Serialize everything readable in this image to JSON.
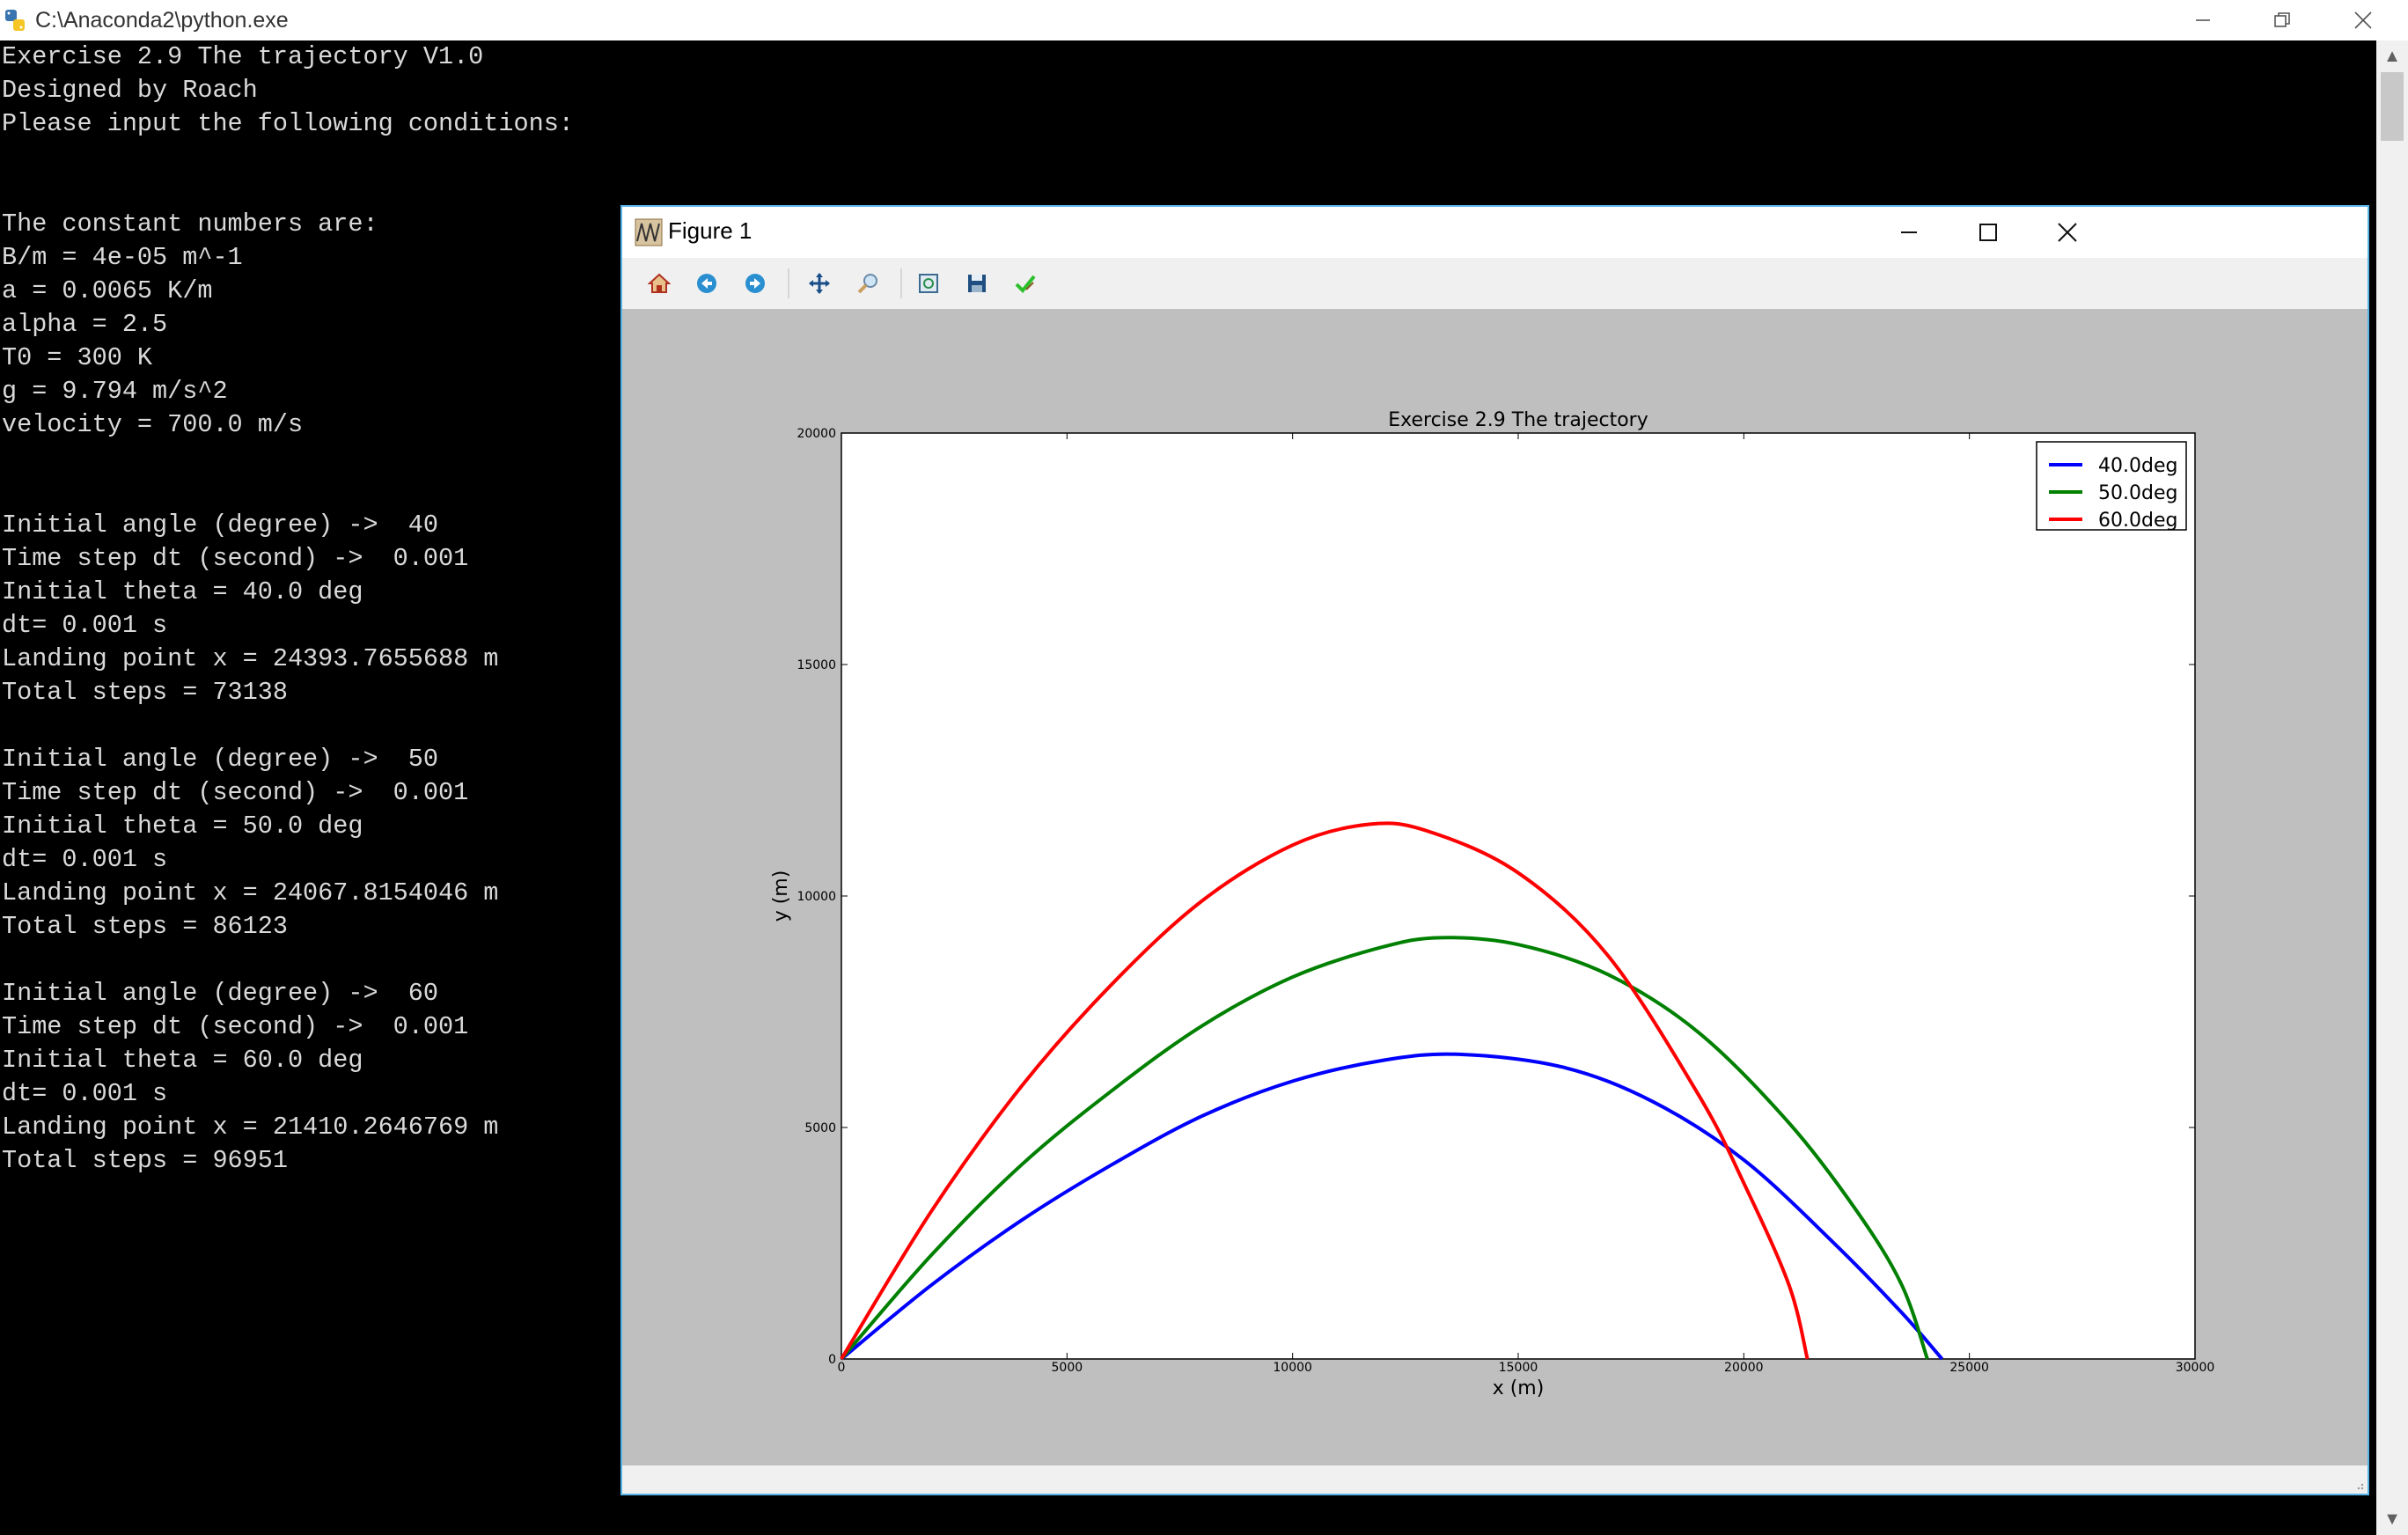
{
  "console_window": {
    "title": "C:\\Anaconda2\\python.exe",
    "lines": [
      "Exercise 2.9 The trajectory V1.0",
      "Designed by Roach",
      "Please input the following conditions:",
      "",
      "",
      "The constant numbers are:",
      "B/m = 4e-05 m^-1",
      "a = 0.0065 K/m",
      "alpha = 2.5",
      "T0 = 300 K",
      "g = 9.794 m/s^2",
      "velocity = 700.0 m/s",
      "",
      "",
      "Initial angle (degree) ->  40",
      "Time step dt (second) ->  0.001",
      "Initial theta = 40.0 deg",
      "dt= 0.001 s",
      "Landing point x = 24393.7655688 m",
      "Total steps = 73138",
      "",
      "Initial angle (degree) ->  50",
      "Time step dt (second) ->  0.001",
      "Initial theta = 50.0 deg",
      "dt= 0.001 s",
      "Landing point x = 24067.8154046 m",
      "Total steps = 86123",
      "",
      "Initial angle (degree) ->  60",
      "Time step dt (second) ->  0.001",
      "Initial theta = 60.0 deg",
      "dt= 0.001 s",
      "Landing point x = 21410.2646769 m",
      "Total steps = 96951"
    ]
  },
  "figure_window": {
    "title": "Figure 1",
    "toolbar": [
      "home-icon",
      "back-arrow-icon",
      "forward-arrow-icon",
      "pan-icon",
      "zoom-icon",
      "subplots-icon",
      "save-icon",
      "edit-check-icon"
    ]
  },
  "chart_data": {
    "type": "line",
    "title": "Exercise 2.9 The trajectory",
    "xlabel": "x (m)",
    "ylabel": "y (m)",
    "xlim": [
      0,
      30000
    ],
    "ylim": [
      0,
      20000
    ],
    "xticks": [
      0,
      5000,
      10000,
      15000,
      20000,
      25000,
      30000
    ],
    "yticks": [
      0,
      5000,
      10000,
      15000,
      20000
    ],
    "grid": false,
    "legend_position": "top-right",
    "series": [
      {
        "name": "40.0deg",
        "color": "#0000ff",
        "x": [
          0,
          2000,
          4000,
          6000,
          8000,
          10000,
          12000,
          13700,
          16000,
          18000,
          20000,
          22000,
          23500,
          24394
        ],
        "y": [
          0,
          1600,
          3000,
          4200,
          5250,
          6000,
          6450,
          6580,
          6300,
          5550,
          4300,
          2500,
          1000,
          0
        ]
      },
      {
        "name": "50.0deg",
        "color": "#008000",
        "x": [
          0,
          2000,
          4000,
          6000,
          8000,
          10000,
          12000,
          13300,
          15000,
          17000,
          19000,
          21000,
          22500,
          23500,
          24068
        ],
        "y": [
          0,
          2250,
          4200,
          5800,
          7200,
          8250,
          8900,
          9100,
          8950,
          8300,
          7050,
          5100,
          3200,
          1600,
          0
        ]
      },
      {
        "name": "60.0deg",
        "color": "#ff0000",
        "x": [
          0,
          2000,
          4000,
          6000,
          8000,
          10000,
          11700,
          13000,
          15000,
          17000,
          19000,
          20000,
          21000,
          21410
        ],
        "y": [
          0,
          3200,
          5900,
          8100,
          9900,
          11100,
          11550,
          11400,
          10500,
          8700,
          5700,
          3800,
          1600,
          0
        ]
      }
    ]
  }
}
